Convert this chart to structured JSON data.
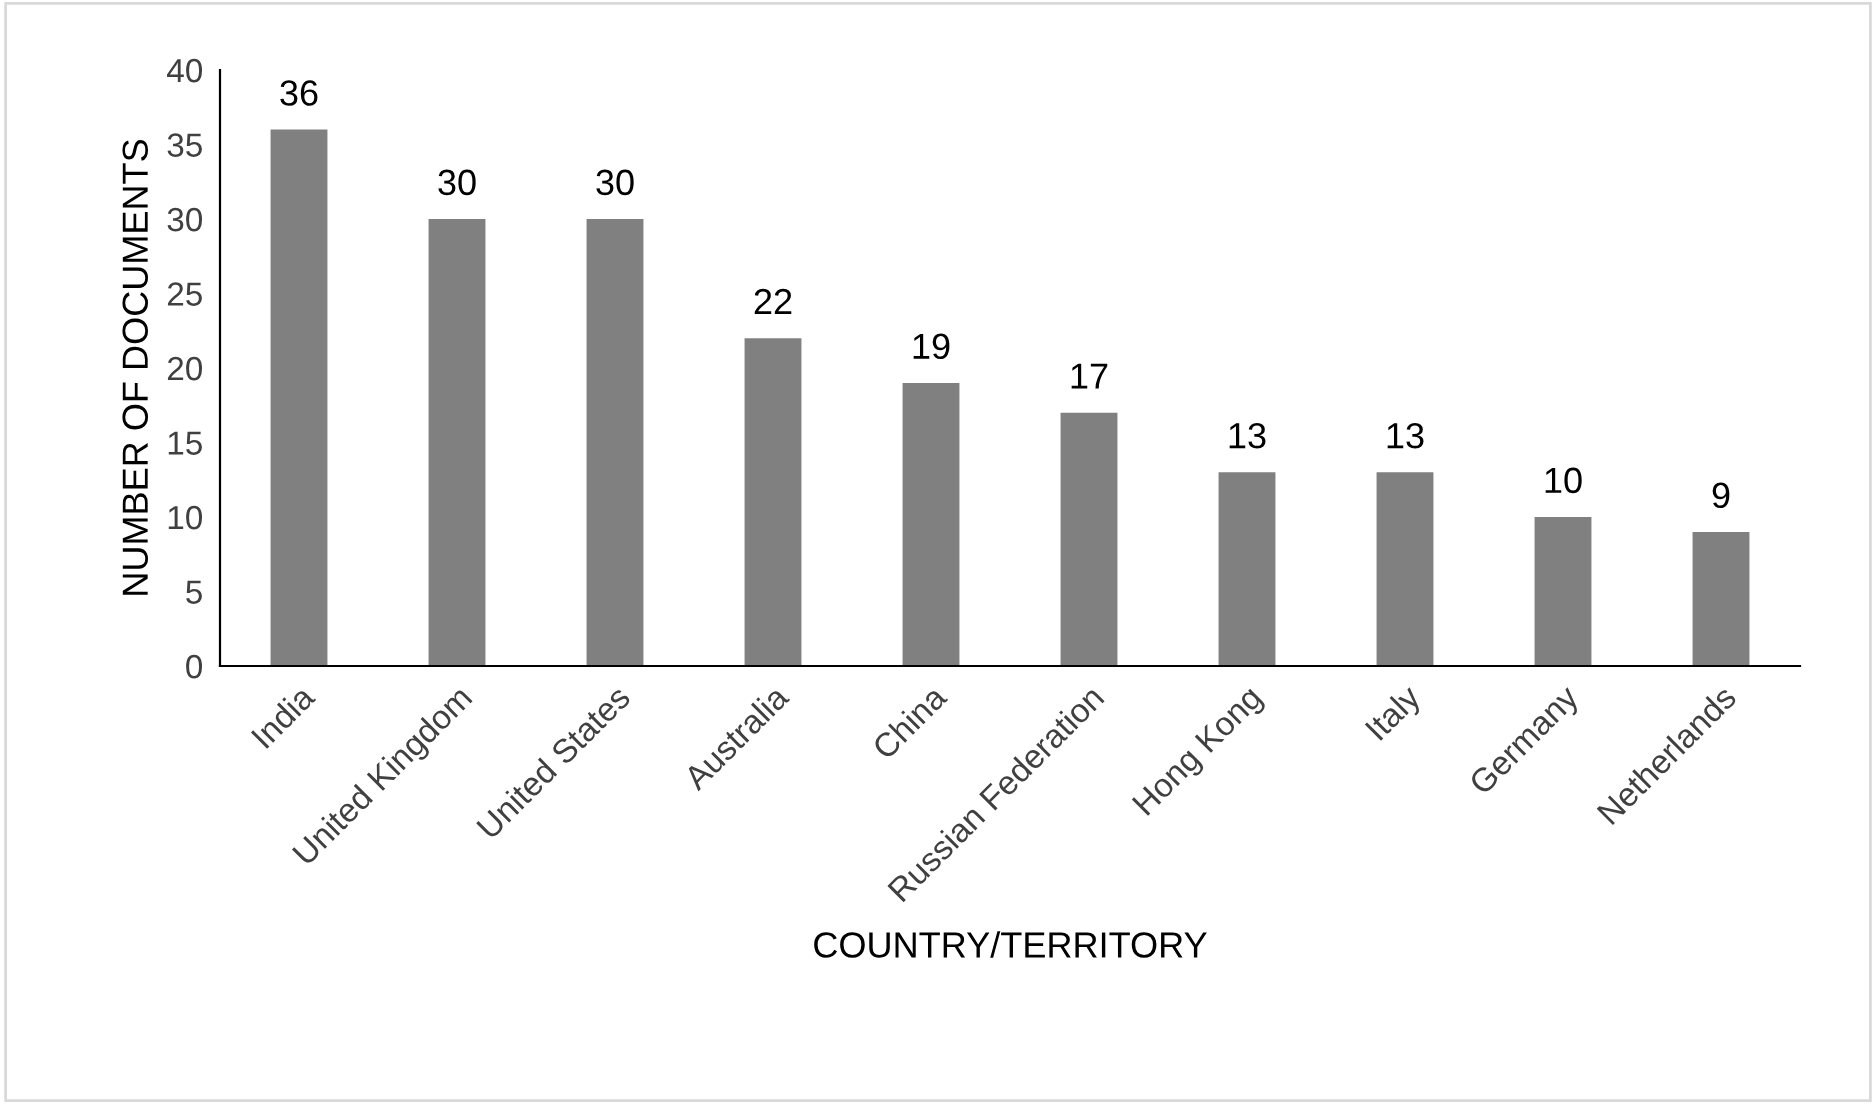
{
  "chart_data": {
    "type": "bar",
    "xlabel": "COUNTRY/TERRITORY",
    "ylabel": "NUMBER OF DOCUMENTS",
    "categories": [
      "India",
      "United Kingdom",
      "United States",
      "Australia",
      "China",
      "Russian Federation",
      "Hong Kong",
      "Italy",
      "Germany",
      "Netherlands"
    ],
    "values": [
      36,
      30,
      30,
      22,
      19,
      17,
      13,
      13,
      10,
      9
    ],
    "color": "#808080",
    "ylim": [
      0,
      40
    ],
    "yticks": [
      0,
      5,
      10,
      15,
      20,
      25,
      30,
      35,
      40
    ],
    "grid": false,
    "data_labels": true
  }
}
